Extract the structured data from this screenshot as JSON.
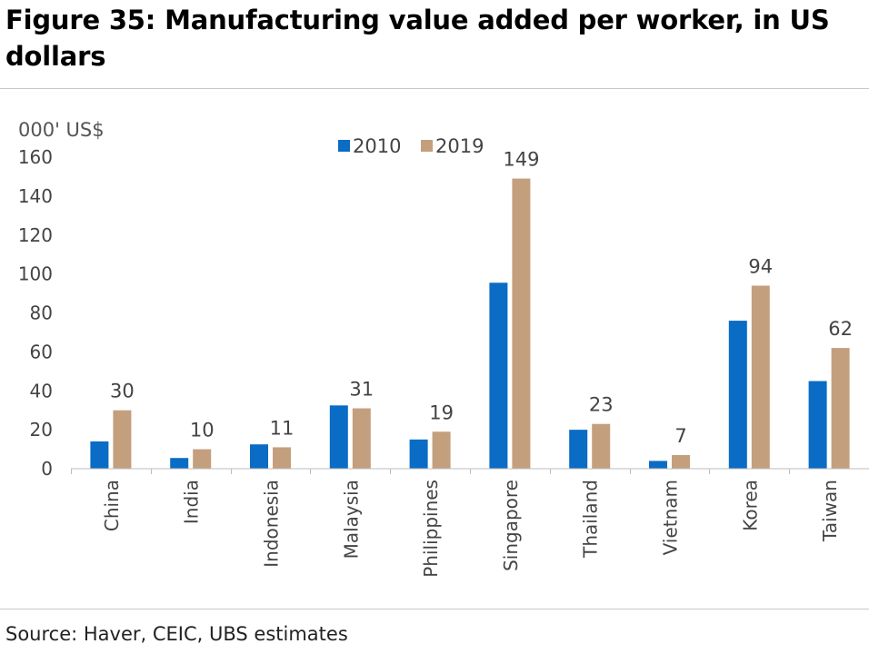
{
  "figure": {
    "title": "Figure 35: Manufacturing value added per worker, in US dollars",
    "source": "Source: Haver, CEIC, UBS estimates"
  },
  "chart_data": {
    "type": "bar",
    "unit_label": "000' US$",
    "categories": [
      "China",
      "India",
      "Indonesia",
      "Malaysia",
      "Philippines",
      "Singapore",
      "Thailand",
      "Vietnam",
      "Korea",
      "Taiwan"
    ],
    "series": [
      {
        "name": "2010",
        "color": "#0a6cc4",
        "values": [
          14,
          5.5,
          12.5,
          32.5,
          15,
          95.5,
          20,
          4,
          76,
          45
        ]
      },
      {
        "name": "2019",
        "color": "#c49f7e",
        "values": [
          30,
          10,
          11,
          31,
          19,
          149,
          23,
          7,
          94,
          62
        ]
      }
    ],
    "data_labels": {
      "series": "2019",
      "values": [
        "30",
        "10",
        "11",
        "31",
        "19",
        "149",
        "23",
        "7",
        "94",
        "62"
      ]
    },
    "ylim": [
      0,
      160
    ],
    "yticks": [
      0,
      20,
      40,
      60,
      80,
      100,
      120,
      140,
      160
    ],
    "legend_position": "top-center",
    "grid": false
  }
}
